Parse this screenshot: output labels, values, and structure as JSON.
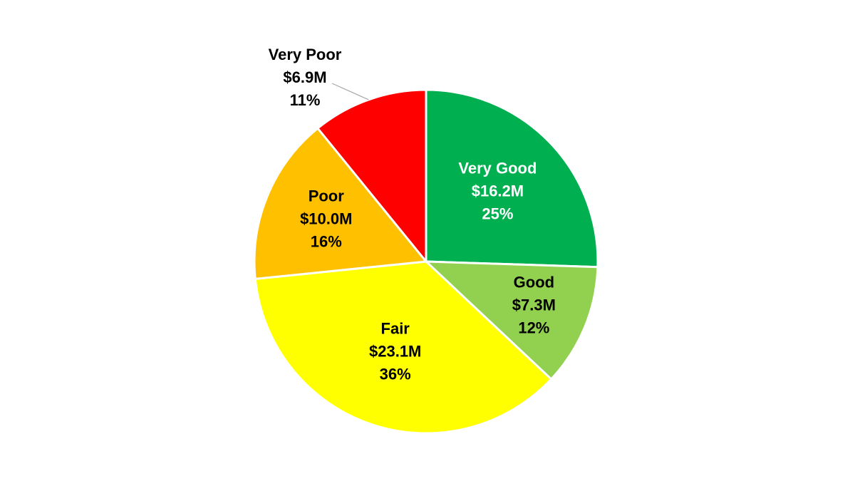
{
  "chart_data": {
    "type": "pie",
    "title": "",
    "legend": "none",
    "slices": [
      {
        "name": "Very Good",
        "value": 16.2,
        "value_label": "$16.2M",
        "percent": 25,
        "percent_label": "25%",
        "color": "#00b050",
        "label_color": "#ffffff"
      },
      {
        "name": "Good",
        "value": 7.3,
        "value_label": "$7.3M",
        "percent": 12,
        "percent_label": "12%",
        "color": "#92d050",
        "label_color": "#000000"
      },
      {
        "name": "Fair",
        "value": 23.1,
        "value_label": "$23.1M",
        "percent": 36,
        "percent_label": "36%",
        "color": "#ffff00",
        "label_color": "#000000"
      },
      {
        "name": "Poor",
        "value": 10.0,
        "value_label": "$10.0M",
        "percent": 16,
        "percent_label": "16%",
        "color": "#ffc000",
        "label_color": "#000000"
      },
      {
        "name": "Very Poor",
        "value": 6.9,
        "value_label": "$6.9M",
        "percent": 11,
        "percent_label": "11%",
        "color": "#ff0000",
        "label_color": "#000000",
        "label_outside": true
      }
    ]
  }
}
